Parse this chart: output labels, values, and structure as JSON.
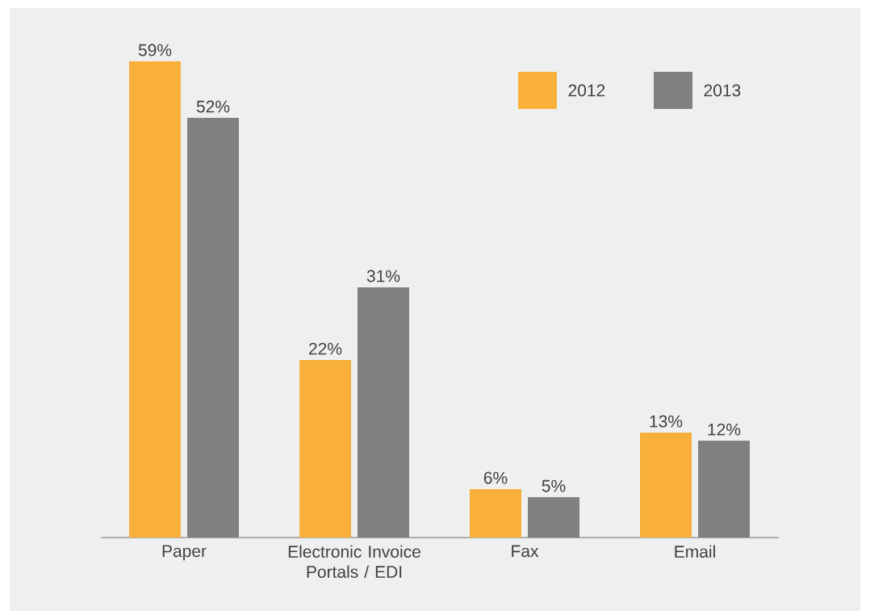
{
  "chart_data": {
    "type": "bar",
    "categories": [
      "Paper",
      "Electronic Invoice Portals / EDI",
      "Fax",
      "Email"
    ],
    "series": [
      {
        "name": "2012",
        "color": "#f9b03b",
        "values": [
          59,
          22,
          6,
          13
        ],
        "value_labels": [
          "59%",
          "22%",
          "6%",
          "13%"
        ]
      },
      {
        "name": "2013",
        "color": "#808080",
        "values": [
          52,
          31,
          5,
          12
        ],
        "value_labels": [
          "52%",
          "31%",
          "5%",
          "12%"
        ]
      }
    ],
    "legend": "top right"
  }
}
